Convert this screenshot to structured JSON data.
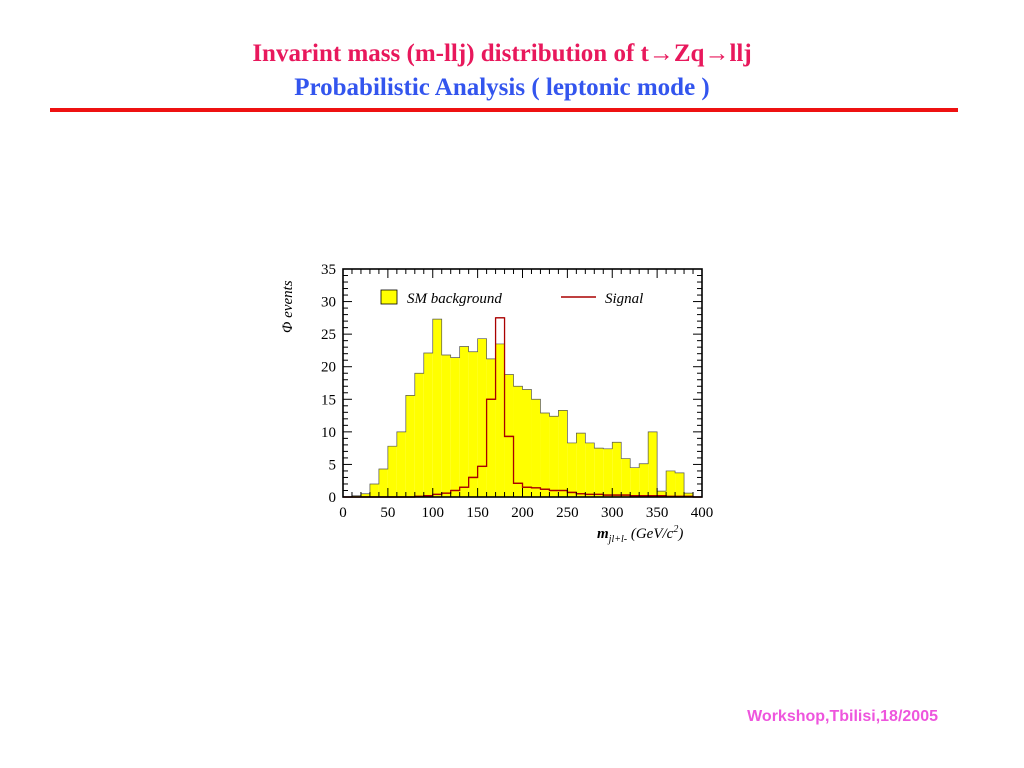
{
  "slide": {
    "title_line1": "Invarint mass (m-llj) distribution of t→Zq→llj",
    "title_line2": "Probabilistic   Analysis ( leptonic mode )",
    "footer": "Workshop,Tbilisi,18/2005"
  },
  "colors": {
    "title_line1": "#e8185c",
    "title_line2": "#3355ee",
    "rule": "#ee1111",
    "footer": "#ee55dd",
    "background_fill": "#ffff00",
    "signal_line": "#aa0000"
  },
  "chart_data": {
    "type": "histogram",
    "ylabel": "Φ events",
    "xlabel": {
      "main": "m",
      "sub": "jl+l-",
      "units_prefix": " (GeV/c",
      "units_sup": "2",
      "units_suffix": ")"
    },
    "xlim": [
      0,
      400
    ],
    "ylim": [
      0,
      35
    ],
    "x_ticks": [
      0,
      50,
      100,
      150,
      200,
      250,
      300,
      350,
      400
    ],
    "y_ticks": [
      0,
      5,
      10,
      15,
      20,
      25,
      30,
      35
    ],
    "bin_width": 10,
    "bin_edges_start": [
      0,
      10,
      20,
      30,
      40,
      50,
      60,
      70,
      80,
      90,
      100,
      110,
      120,
      130,
      140,
      150,
      160,
      170,
      180,
      190,
      200,
      210,
      220,
      230,
      240,
      250,
      260,
      270,
      280,
      290,
      300,
      310,
      320,
      330,
      340,
      350,
      360,
      370,
      380,
      390
    ],
    "legend": {
      "position": "top",
      "entries": [
        "SM background",
        "Signal"
      ]
    },
    "series": [
      {
        "name": "SM background",
        "style": "filled",
        "values": [
          0,
          0.2,
          0.5,
          2,
          4.3,
          7.8,
          10,
          15.6,
          19,
          22.1,
          27.3,
          21.8,
          21.4,
          23.1,
          22.3,
          24.3,
          21.2,
          23.5,
          18.8,
          17,
          16.5,
          15,
          12.9,
          12.4,
          13.3,
          8.3,
          9.8,
          8.3,
          7.5,
          7.4,
          8.4,
          5.9,
          4.5,
          5.1,
          10,
          0.9,
          4,
          3.7,
          0.6,
          0
        ]
      },
      {
        "name": "Signal",
        "style": "line",
        "values": [
          0,
          0,
          0,
          0,
          0,
          0,
          0,
          0,
          0.1,
          0.2,
          0.4,
          0.6,
          1,
          1.5,
          3,
          4.7,
          15,
          27.5,
          9.3,
          2.1,
          1.5,
          1.4,
          1.2,
          1,
          1,
          0.7,
          0.5,
          0.4,
          0.4,
          0.3,
          0.3,
          0.3,
          0.2,
          0.2,
          0.2,
          0.2,
          0.1,
          0.1,
          0.1,
          0
        ]
      }
    ]
  }
}
